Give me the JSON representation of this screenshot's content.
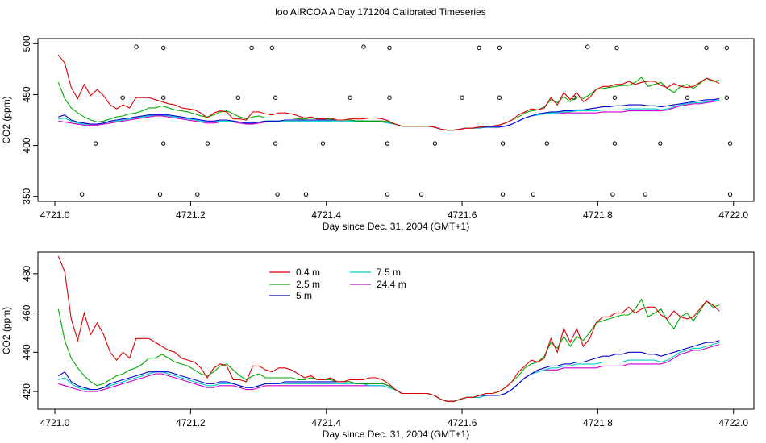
{
  "page_title": "loo AIRCOA A  Day 171204  Calibrated Timeseries",
  "colors": {
    "0.4 m": "#dd0000",
    "2.5 m": "#00aa00",
    "5 m": "#0000cc",
    "7.5 m": "#00cccc",
    "24.4 m": "#cc00cc",
    "markers": "#000000"
  },
  "chart_data": [
    {
      "type": "scatter+line",
      "title": "",
      "xlabel": "Day since Dec. 31, 2004 (GMT+1)",
      "ylabel": "CO2 (ppm)",
      "xlim": [
        4720.975,
        4722.03
      ],
      "ylim": [
        345,
        505
      ],
      "x_ticks": [
        "4721.0",
        "4721.2",
        "4721.4",
        "4721.6",
        "4721.8",
        "4722.0"
      ],
      "x_tick_values": [
        4721.0,
        4721.2,
        4721.4,
        4721.6,
        4721.8,
        4722.0
      ],
      "y_ticks": [
        "350",
        "400",
        "450",
        "500"
      ],
      "y_tick_values": [
        350,
        400,
        450,
        500
      ],
      "series": [
        {
          "name": "0.4 m",
          "values": [
            489,
            481,
            457,
            446,
            460,
            449,
            455,
            449,
            440,
            436,
            440,
            437,
            447,
            447,
            447,
            445,
            443,
            441,
            440,
            437,
            436,
            435,
            432,
            427,
            432,
            434,
            433,
            426,
            426,
            425,
            433,
            433,
            431,
            430,
            432,
            432,
            431,
            429,
            427,
            428,
            426,
            426,
            427,
            425,
            425,
            426,
            426,
            426,
            427,
            427,
            426,
            424,
            421,
            419,
            419,
            419,
            419,
            419,
            418,
            416,
            415,
            415,
            416,
            417,
            417,
            418,
            419,
            419,
            420,
            422,
            425,
            430,
            433,
            436,
            435,
            437,
            447,
            440,
            452,
            445,
            452,
            443,
            447,
            455,
            458,
            458,
            460,
            460,
            463,
            460,
            462,
            463,
            463,
            459,
            457,
            461,
            458,
            457,
            458,
            462,
            466,
            464,
            461
          ]
        },
        {
          "name": "2.5 m",
          "values": [
            462,
            446,
            437,
            432,
            428,
            425,
            423,
            424,
            426,
            428,
            429,
            431,
            432,
            434,
            437,
            437,
            439,
            437,
            435,
            434,
            433,
            431,
            429,
            428,
            430,
            433,
            434,
            431,
            428,
            426,
            428,
            429,
            427,
            427,
            427,
            427,
            427,
            426,
            426,
            427,
            426,
            426,
            426,
            425,
            425,
            425,
            424,
            424,
            424,
            424,
            424,
            423,
            421,
            419,
            419,
            419,
            419,
            419,
            418,
            416,
            415,
            415,
            416,
            417,
            417,
            418,
            419,
            419,
            420,
            422,
            425,
            428,
            432,
            434,
            435,
            438,
            445,
            442,
            448,
            443,
            448,
            446,
            450,
            455,
            456,
            457,
            458,
            459,
            459,
            462,
            467,
            458,
            460,
            462,
            456,
            452,
            458,
            460,
            456,
            461,
            466,
            463,
            464
          ]
        },
        {
          "name": "5 m",
          "values": [
            428,
            430,
            425,
            423,
            422,
            421,
            421,
            422,
            424,
            425,
            426,
            427,
            428,
            429,
            430,
            430,
            430,
            430,
            429,
            428,
            427,
            426,
            425,
            424,
            424,
            425,
            425,
            424,
            423,
            422,
            422,
            423,
            424,
            424,
            424,
            425,
            425,
            425,
            425,
            425,
            425,
            425,
            425,
            425,
            425,
            425,
            424,
            424,
            424,
            424,
            424,
            423,
            421,
            419,
            419,
            419,
            419,
            419,
            418,
            416,
            415,
            415,
            416,
            417,
            417,
            418,
            418,
            418,
            418,
            419,
            421,
            424,
            427,
            429,
            431,
            432,
            433,
            433,
            434,
            434,
            435,
            435,
            436,
            437,
            438,
            438,
            439,
            439,
            440,
            440,
            440,
            439,
            439,
            438,
            439,
            440,
            441,
            442,
            443,
            444,
            445,
            445,
            446
          ]
        },
        {
          "name": "7.5 m",
          "values": [
            426,
            427,
            424,
            422,
            421,
            421,
            421,
            422,
            423,
            424,
            425,
            426,
            427,
            428,
            429,
            430,
            430,
            429,
            428,
            427,
            426,
            425,
            424,
            423,
            423,
            424,
            424,
            424,
            423,
            422,
            422,
            423,
            424,
            424,
            424,
            424,
            424,
            424,
            424,
            424,
            424,
            424,
            424,
            424,
            424,
            424,
            424,
            424,
            423,
            423,
            423,
            422,
            421,
            419,
            419,
            419,
            419,
            419,
            418,
            416,
            415,
            415,
            416,
            417,
            417,
            417,
            418,
            418,
            418,
            419,
            421,
            424,
            427,
            429,
            430,
            431,
            432,
            432,
            433,
            433,
            434,
            434,
            434,
            434,
            435,
            435,
            435,
            435,
            436,
            436,
            436,
            436,
            436,
            435,
            436,
            438,
            440,
            441,
            442,
            442,
            443,
            444,
            445
          ]
        },
        {
          "name": "24.4 m",
          "values": [
            424,
            423,
            422,
            421,
            420,
            420,
            420,
            421,
            422,
            423,
            424,
            425,
            426,
            427,
            428,
            429,
            429,
            428,
            427,
            426,
            425,
            424,
            423,
            422,
            422,
            423,
            423,
            423,
            422,
            421,
            421,
            422,
            423,
            423,
            423,
            423,
            423,
            423,
            423,
            423,
            423,
            423,
            423,
            423,
            423,
            423,
            423,
            423,
            423,
            423,
            423,
            422,
            421,
            419,
            419,
            419,
            419,
            419,
            418,
            416,
            415,
            415,
            416,
            417,
            417,
            417,
            418,
            418,
            418,
            419,
            421,
            424,
            427,
            429,
            430,
            431,
            431,
            431,
            432,
            432,
            432,
            432,
            432,
            432,
            433,
            433,
            433,
            433,
            434,
            434,
            434,
            434,
            434,
            434,
            435,
            437,
            439,
            440,
            441,
            441,
            442,
            443,
            444
          ]
        }
      ],
      "markers": [
        {
          "x": 4721.04,
          "y": 352
        },
        {
          "x": 4721.06,
          "y": 402
        },
        {
          "x": 4721.1,
          "y": 447
        },
        {
          "x": 4721.12,
          "y": 497
        },
        {
          "x": 4721.155,
          "y": 352
        },
        {
          "x": 4721.16,
          "y": 402
        },
        {
          "x": 4721.16,
          "y": 447
        },
        {
          "x": 4721.16,
          "y": 496
        },
        {
          "x": 4721.21,
          "y": 352
        },
        {
          "x": 4721.225,
          "y": 402
        },
        {
          "x": 4721.27,
          "y": 447
        },
        {
          "x": 4721.29,
          "y": 496
        },
        {
          "x": 4721.32,
          "y": 496
        },
        {
          "x": 4721.325,
          "y": 447
        },
        {
          "x": 4721.325,
          "y": 402
        },
        {
          "x": 4721.328,
          "y": 352
        },
        {
          "x": 4721.37,
          "y": 352
        },
        {
          "x": 4721.395,
          "y": 402
        },
        {
          "x": 4721.435,
          "y": 447
        },
        {
          "x": 4721.455,
          "y": 497
        },
        {
          "x": 4721.49,
          "y": 352
        },
        {
          "x": 4721.49,
          "y": 402
        },
        {
          "x": 4721.493,
          "y": 447
        },
        {
          "x": 4721.493,
          "y": 496
        },
        {
          "x": 4721.54,
          "y": 352
        },
        {
          "x": 4721.56,
          "y": 402
        },
        {
          "x": 4721.6,
          "y": 447
        },
        {
          "x": 4721.625,
          "y": 496
        },
        {
          "x": 4721.655,
          "y": 496
        },
        {
          "x": 4721.655,
          "y": 447
        },
        {
          "x": 4721.66,
          "y": 402
        },
        {
          "x": 4721.66,
          "y": 352
        },
        {
          "x": 4721.705,
          "y": 352
        },
        {
          "x": 4721.725,
          "y": 402
        },
        {
          "x": 4721.765,
          "y": 447
        },
        {
          "x": 4721.785,
          "y": 497
        },
        {
          "x": 4721.822,
          "y": 352
        },
        {
          "x": 4721.825,
          "y": 402
        },
        {
          "x": 4721.825,
          "y": 447
        },
        {
          "x": 4721.828,
          "y": 496
        },
        {
          "x": 4721.87,
          "y": 352
        },
        {
          "x": 4721.892,
          "y": 402
        },
        {
          "x": 4721.932,
          "y": 447
        },
        {
          "x": 4721.96,
          "y": 496
        },
        {
          "x": 4721.99,
          "y": 496
        },
        {
          "x": 4721.99,
          "y": 447
        },
        {
          "x": 4721.995,
          "y": 402
        },
        {
          "x": 4721.995,
          "y": 352
        }
      ],
      "x_start": 4721.005,
      "x_step": 0.00955
    },
    {
      "type": "line",
      "title": "",
      "xlabel": "Day since Dec. 31, 2004 (GMT+1)",
      "ylabel": "CO2 (ppm)",
      "xlim": [
        4720.975,
        4722.03
      ],
      "ylim": [
        411,
        491
      ],
      "x_ticks": [
        "4721.0",
        "4721.2",
        "4721.4",
        "4721.6",
        "4721.8",
        "4722.0"
      ],
      "x_tick_values": [
        4721.0,
        4721.2,
        4721.4,
        4721.6,
        4721.8,
        4722.0
      ],
      "y_ticks": [
        "420",
        "440",
        "460",
        "480"
      ],
      "y_tick_values": [
        420,
        440,
        460,
        480
      ],
      "legend": {
        "placement": "top-left",
        "entries": [
          "0.4 m",
          "2.5 m",
          "5 m",
          "7.5 m",
          "24.4 m"
        ]
      },
      "series_ref": "same as panel 1"
    }
  ]
}
